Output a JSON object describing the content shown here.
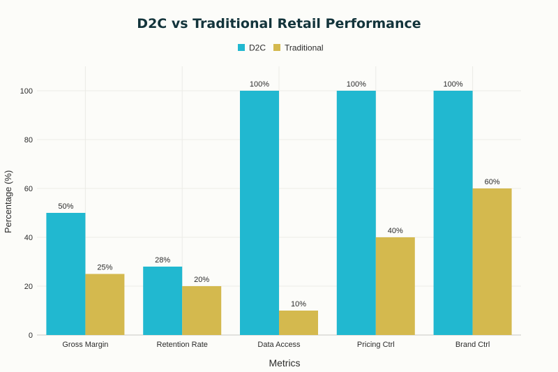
{
  "chart_data": {
    "type": "bar",
    "title": "D2C vs Traditional Retail Performance",
    "xlabel": "Metrics",
    "ylabel": "Percentage (%)",
    "categories": [
      "Gross Margin",
      "Retention Rate",
      "Data Access",
      "Pricing Ctrl",
      "Brand Ctrl"
    ],
    "series": [
      {
        "name": "D2C",
        "color": "#21b8d0",
        "values": [
          50,
          28,
          100,
          100,
          100
        ],
        "labels": [
          "50%",
          "28%",
          "100%",
          "100%",
          "100%"
        ]
      },
      {
        "name": "Traditional",
        "color": "#d4b94e",
        "values": [
          25,
          20,
          10,
          40,
          60
        ],
        "labels": [
          "25%",
          "20%",
          "10%",
          "40%",
          "60%"
        ]
      }
    ],
    "ylim": [
      0,
      110
    ],
    "yticks": [
      0,
      20,
      40,
      60,
      80,
      100
    ],
    "grid": true,
    "legend_position": "top-center"
  }
}
